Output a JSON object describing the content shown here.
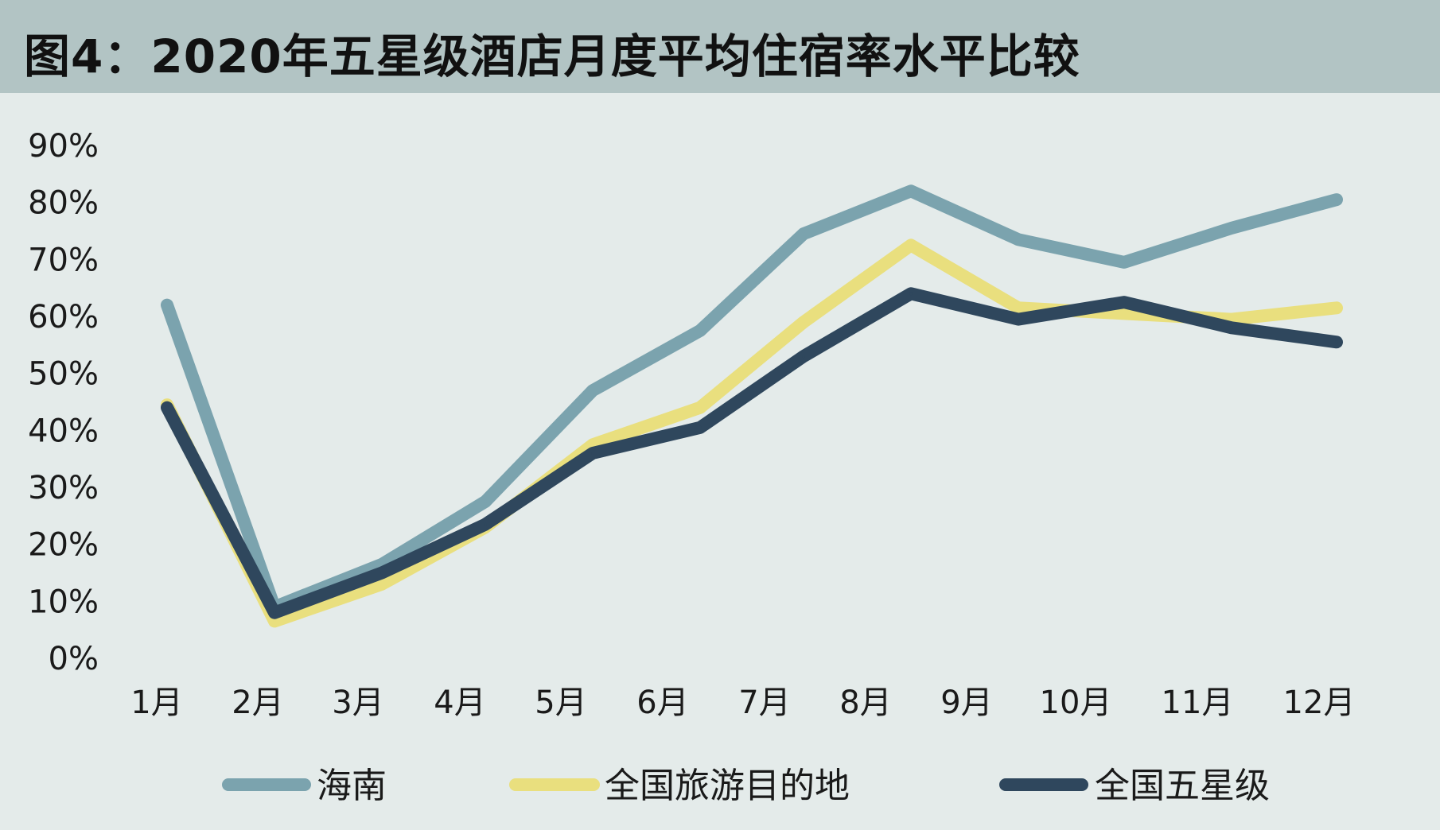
{
  "chart_data": {
    "type": "line",
    "title": "图4：2020年五星级酒店月度平均住宿率水平比较",
    "xlabel": "",
    "ylabel": "",
    "categories": [
      "1月",
      "2月",
      "3月",
      "4月",
      "5月",
      "6月",
      "7月",
      "8月",
      "9月",
      "10月",
      "11月",
      "12月"
    ],
    "y_ticks": [
      "0%",
      "10%",
      "20%",
      "30%",
      "40%",
      "50%",
      "60%",
      "70%",
      "80%",
      "90%"
    ],
    "ylim": [
      0,
      90
    ],
    "grid": false,
    "legend_position": "bottom",
    "series": [
      {
        "name": "海南",
        "color": "#7ba3ae",
        "values": [
          62,
          9,
          16.5,
          27.5,
          47,
          57.5,
          74.5,
          82,
          73.5,
          69.5,
          75.5,
          80.5
        ]
      },
      {
        "name": "全国旅游目的地",
        "color": "#e9df7e",
        "values": [
          44.5,
          6.5,
          13,
          23,
          37.5,
          44,
          59,
          72.5,
          61.5,
          60.5,
          59.5,
          61.5
        ]
      },
      {
        "name": "全国五星级",
        "color": "#2f475d",
        "values": [
          44,
          8,
          15,
          23.5,
          36,
          40.5,
          53,
          64,
          59.5,
          62.5,
          58,
          55.5
        ]
      }
    ]
  }
}
